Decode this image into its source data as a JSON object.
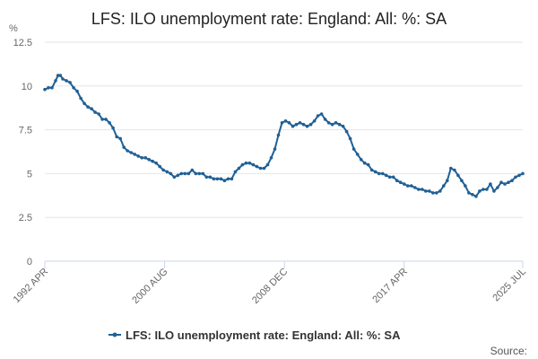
{
  "chart_data": {
    "type": "line",
    "title": "LFS: ILO unemployment rate: England: All: %: SA",
    "ylabel": "%",
    "ylim": [
      0,
      12.5
    ],
    "y_ticks": [
      "0",
      "2.5",
      "5",
      "7.5",
      "10",
      "12.5"
    ],
    "x_ticks": [
      {
        "label": "1992 APR",
        "x": 1992.25
      },
      {
        "label": "2000 AUG",
        "x": 2000.58
      },
      {
        "label": "2008 DEC",
        "x": 2008.92
      },
      {
        "label": "2017 APR",
        "x": 2017.25
      },
      {
        "label": "2025 JUL",
        "x": 2025.5
      }
    ],
    "xlim": [
      1992.25,
      2025.5
    ],
    "grid": true,
    "legend_position": "bottom",
    "color": "#206095",
    "source_label": "Source:",
    "series": [
      {
        "name": "LFS: ILO unemployment rate: England: All: %: SA",
        "x": [
          1992.25,
          1992.5,
          1992.75,
          1993.0,
          1993.17,
          1993.33,
          1993.5,
          1993.75,
          1994.0,
          1994.25,
          1994.5,
          1994.75,
          1995.0,
          1995.25,
          1995.5,
          1995.75,
          1996.0,
          1996.25,
          1996.5,
          1996.75,
          1997.0,
          1997.25,
          1997.5,
          1997.75,
          1998.0,
          1998.25,
          1998.5,
          1998.75,
          1999.0,
          1999.25,
          1999.5,
          1999.75,
          2000.0,
          2000.25,
          2000.5,
          2000.75,
          2001.0,
          2001.25,
          2001.5,
          2001.75,
          2002.0,
          2002.25,
          2002.5,
          2002.75,
          2003.0,
          2003.25,
          2003.5,
          2003.75,
          2004.0,
          2004.25,
          2004.5,
          2004.75,
          2005.0,
          2005.25,
          2005.5,
          2005.75,
          2006.0,
          2006.25,
          2006.5,
          2006.75,
          2007.0,
          2007.25,
          2007.5,
          2007.75,
          2008.0,
          2008.25,
          2008.5,
          2008.75,
          2009.0,
          2009.25,
          2009.5,
          2009.75,
          2010.0,
          2010.25,
          2010.5,
          2010.75,
          2011.0,
          2011.25,
          2011.5,
          2011.75,
          2012.0,
          2012.25,
          2012.5,
          2012.75,
          2013.0,
          2013.25,
          2013.5,
          2013.75,
          2014.0,
          2014.25,
          2014.5,
          2014.75,
          2015.0,
          2015.25,
          2015.5,
          2015.75,
          2016.0,
          2016.25,
          2016.5,
          2016.75,
          2017.0,
          2017.25,
          2017.5,
          2017.75,
          2018.0,
          2018.25,
          2018.5,
          2018.75,
          2019.0,
          2019.25,
          2019.5,
          2019.75,
          2020.0,
          2020.25,
          2020.5,
          2020.75,
          2021.0,
          2021.25,
          2021.5,
          2021.75,
          2022.0,
          2022.25,
          2022.5,
          2022.75,
          2023.0,
          2023.25,
          2023.5,
          2023.75,
          2024.0,
          2024.25,
          2024.5,
          2024.75,
          2025.0,
          2025.25,
          2025.5
        ],
        "values": [
          9.8,
          9.9,
          9.9,
          10.3,
          10.6,
          10.6,
          10.4,
          10.3,
          10.2,
          9.9,
          9.7,
          9.3,
          9.0,
          8.8,
          8.7,
          8.5,
          8.4,
          8.1,
          8.1,
          7.9,
          7.6,
          7.1,
          7.0,
          6.5,
          6.3,
          6.2,
          6.1,
          6.0,
          5.9,
          5.9,
          5.8,
          5.7,
          5.6,
          5.4,
          5.2,
          5.1,
          5.0,
          4.8,
          4.9,
          5.0,
          5.0,
          5.0,
          5.2,
          5.0,
          5.0,
          5.0,
          4.8,
          4.8,
          4.7,
          4.7,
          4.7,
          4.6,
          4.7,
          4.7,
          5.1,
          5.3,
          5.5,
          5.6,
          5.6,
          5.5,
          5.4,
          5.3,
          5.3,
          5.5,
          5.9,
          6.4,
          7.2,
          7.9,
          8.0,
          7.9,
          7.7,
          7.8,
          7.9,
          7.8,
          7.7,
          7.8,
          8.0,
          8.3,
          8.4,
          8.1,
          7.9,
          7.8,
          7.9,
          7.8,
          7.7,
          7.4,
          7.0,
          6.4,
          6.1,
          5.8,
          5.6,
          5.5,
          5.2,
          5.1,
          5.0,
          5.0,
          4.9,
          4.8,
          4.8,
          4.6,
          4.5,
          4.4,
          4.3,
          4.3,
          4.2,
          4.1,
          4.1,
          4.0,
          4.0,
          3.9,
          3.9,
          4.0,
          4.3,
          4.6,
          5.3,
          5.2,
          4.9,
          4.6,
          4.3,
          3.9,
          3.8,
          3.7,
          4.0,
          4.1,
          4.1,
          4.4,
          4.0,
          4.2,
          4.5,
          4.4,
          4.5,
          4.6,
          4.8,
          4.9,
          5.0
        ]
      }
    ]
  }
}
